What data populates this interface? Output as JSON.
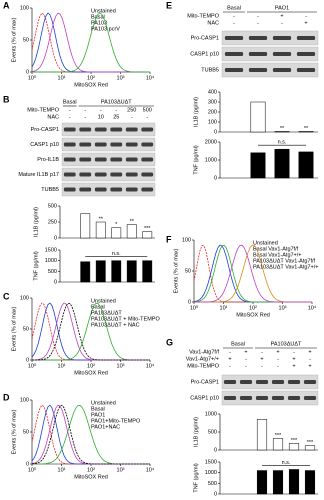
{
  "a": {
    "letter": "A",
    "y_label": "Events (% of max)",
    "x_label": "MitoSOX Red",
    "ylim": [
      0,
      100
    ],
    "yticks": [
      0,
      50,
      100
    ],
    "xlim": [
      1,
      10000
    ],
    "log_x": true,
    "xticks": [
      {
        "value": 1,
        "label": "10⁰"
      },
      {
        "value": 10,
        "label": "10¹"
      },
      {
        "value": 100,
        "label": "10²"
      },
      {
        "value": 1000,
        "label": "10³"
      },
      {
        "value": 10000,
        "label": "10⁴"
      }
    ],
    "legend": [
      {
        "name": "Unstained",
        "color": "#e8262b"
      },
      {
        "name": "Basal",
        "color": "#1a3fd4"
      },
      {
        "name": "PA103",
        "color": "#c040c0"
      },
      {
        "name": "PA103 pcrV",
        "color": "#2fae2f"
      }
    ]
  },
  "b": {
    "letter": "B",
    "groups": [
      "Basal",
      "PA103ΔUΔT"
    ],
    "treatments": [
      {
        "name": "Mito-TEMPO",
        "marks": [
          "-",
          "-",
          "-",
          "-",
          "250",
          "500"
        ]
      },
      {
        "name": "NAC",
        "marks": [
          "-",
          "-",
          "10",
          "25",
          "-",
          "-"
        ]
      }
    ],
    "blots": [
      "Pro-CASP1",
      "CASP1 p10",
      "Pro-IL1B",
      "Mature IL1B p17",
      "TUBB5"
    ],
    "il1b": {
      "y_label": "IL1B (pg/ml)",
      "values": [
        0,
        380,
        250,
        160,
        210,
        100
      ],
      "ylim": [
        0,
        500
      ],
      "yticks": [
        0,
        250,
        500
      ],
      "color": "#ffffff",
      "sig_labels": [
        null,
        null,
        "**",
        "*",
        "**",
        "***"
      ]
    },
    "tnf": {
      "y_label": "TNF (pg/ml)",
      "values": [
        0,
        950,
        1000,
        1000,
        1000,
        1000
      ],
      "ylim": [
        0,
        1500
      ],
      "yticks": [
        0,
        500,
        1000,
        1500
      ],
      "color": "#000000",
      "ns_label": "n.s."
    }
  },
  "c": {
    "letter": "C",
    "y_label": "Events (% of max)",
    "x_label": "MitoSOX Red",
    "ylim": [
      0,
      100
    ],
    "yticks": [
      0,
      50,
      100
    ],
    "xlim": [
      1,
      10000
    ],
    "log_x": true,
    "xticks": [
      {
        "value": 1,
        "label": "10⁰"
      },
      {
        "value": 10,
        "label": "10¹"
      },
      {
        "value": 100,
        "label": "10²"
      },
      {
        "value": 1000,
        "label": "10³"
      },
      {
        "value": 10000,
        "label": "10⁴"
      }
    ],
    "legend": [
      {
        "name": "Unstained",
        "color": "#e8262b"
      },
      {
        "name": "Basal",
        "color": "#1a3fd4"
      },
      {
        "name": "PA103ΔUΔT",
        "color": "#2fae2f"
      },
      {
        "name": "PA103ΔUΔT + Mito-TEMPO",
        "color": "#c040c0"
      },
      {
        "name": "PA103ΔUΔT + NAC",
        "color": "#000000"
      }
    ]
  },
  "d": {
    "letter": "D",
    "y_label": "Events (% of max)",
    "x_label": "MitoSOX Red",
    "ylim": [
      0,
      100
    ],
    "yticks": [
      0,
      50,
      100
    ],
    "xlim": [
      1,
      10000
    ],
    "log_x": true,
    "xticks": [
      {
        "value": 1,
        "label": "10⁰"
      },
      {
        "value": 10,
        "label": "10¹"
      },
      {
        "value": 100,
        "label": "10²"
      },
      {
        "value": 1000,
        "label": "10³"
      },
      {
        "value": 10000,
        "label": "10⁴"
      }
    ],
    "legend": [
      {
        "name": "Unstained",
        "color": "#e8262b"
      },
      {
        "name": "Basal",
        "color": "#1a3fd4"
      },
      {
        "name": "PAO1",
        "color": "#2fae2f"
      },
      {
        "name": "PAO1+Mito-TEMPO",
        "color": "#c040c0"
      },
      {
        "name": "PAO1+NAC",
        "color": "#000000"
      }
    ]
  },
  "e": {
    "letter": "E",
    "groups": [
      "Basal",
      "PAO1"
    ],
    "treatments": [
      {
        "name": "Mito-TEMPO",
        "marks": [
          "-",
          "-",
          "+",
          "-"
        ]
      },
      {
        "name": "NAC",
        "marks": [
          "-",
          "-",
          "-",
          "+"
        ]
      }
    ],
    "blots": [
      "Pro-CASP1",
      "CASP1 p10",
      "TUBB5"
    ],
    "il1b": {
      "y_label": "IL1B (pg/ml)",
      "values": [
        0,
        300,
        5,
        5
      ],
      "ylim": [
        0,
        400
      ],
      "yticks": [
        0,
        100,
        200,
        300,
        400
      ],
      "color": "#ffffff",
      "sig_labels": [
        null,
        null,
        "**",
        "**"
      ]
    },
    "tnf": {
      "y_label": "TNF (pg/ml)",
      "values": [
        0,
        1400,
        1600,
        1450
      ],
      "ylim": [
        0,
        2000
      ],
      "yticks": [
        0,
        1000,
        2000
      ],
      "color": "#000000",
      "ns_label": "n.s."
    }
  },
  "f": {
    "letter": "F",
    "y_label": "Events (% of max)",
    "x_label": "MitoSOX Red",
    "ylim": [
      0,
      100
    ],
    "yticks": [
      0,
      50,
      100
    ],
    "xlim": [
      1,
      10000
    ],
    "log_x": true,
    "xticks": [
      {
        "value": 1,
        "label": "10⁰"
      },
      {
        "value": 10,
        "label": "10¹"
      },
      {
        "value": 100,
        "label": "10²"
      },
      {
        "value": 1000,
        "label": "10³"
      },
      {
        "value": 10000,
        "label": "10⁴"
      }
    ],
    "legend": [
      {
        "name": "Unstained",
        "color": "#e8262b"
      },
      {
        "name": "Basal Vav1-Atg7f/f",
        "color": "#1a3fd4"
      },
      {
        "name": "Basal Vav1-Atg7+/+",
        "color": "#2fae2f"
      },
      {
        "name": "PA103ΔUΔT Vav1-Atg7f/f",
        "color": "#e08a1a"
      },
      {
        "name": "PA103ΔUΔT Vav1-Atg7+/+",
        "color": "#c040c0"
      }
    ]
  },
  "g": {
    "letter": "G",
    "groups": [
      "Basal",
      "PA103ΔUΔT"
    ],
    "treatments": [
      {
        "name": "Vav1-Atg7f/f",
        "marks": [
          "-",
          "+",
          "-",
          "+",
          "-",
          "+"
        ]
      },
      {
        "name": "Vav1-Atg7+/+",
        "marks": [
          "+",
          "-",
          "+",
          "-",
          "+",
          "-"
        ]
      },
      {
        "name": "Mito-TEMPO",
        "marks": [
          "-",
          "-",
          "-",
          "-",
          "+",
          "+"
        ]
      }
    ],
    "blots": [
      "Pro-CASP1",
      "CASP1 p10"
    ],
    "il1b": {
      "y_label": "IL1B (pg/ml)",
      "values": [
        0,
        0,
        850,
        320,
        180,
        120
      ],
      "ylim": [
        0,
        1000
      ],
      "yticks": [
        0,
        500,
        1000
      ],
      "color": "#ffffff",
      "sig_labels": [
        null,
        null,
        null,
        "***",
        "***",
        "***"
      ]
    },
    "tnf": {
      "y_label": "TNF (pg/ml)",
      "values": [
        0,
        0,
        1100,
        1100,
        1150,
        1100
      ],
      "ylim": [
        0,
        1500
      ],
      "yticks": [
        0,
        500,
        1000,
        1500
      ],
      "color": "#000000",
      "ns_label": "n.s."
    }
  }
}
